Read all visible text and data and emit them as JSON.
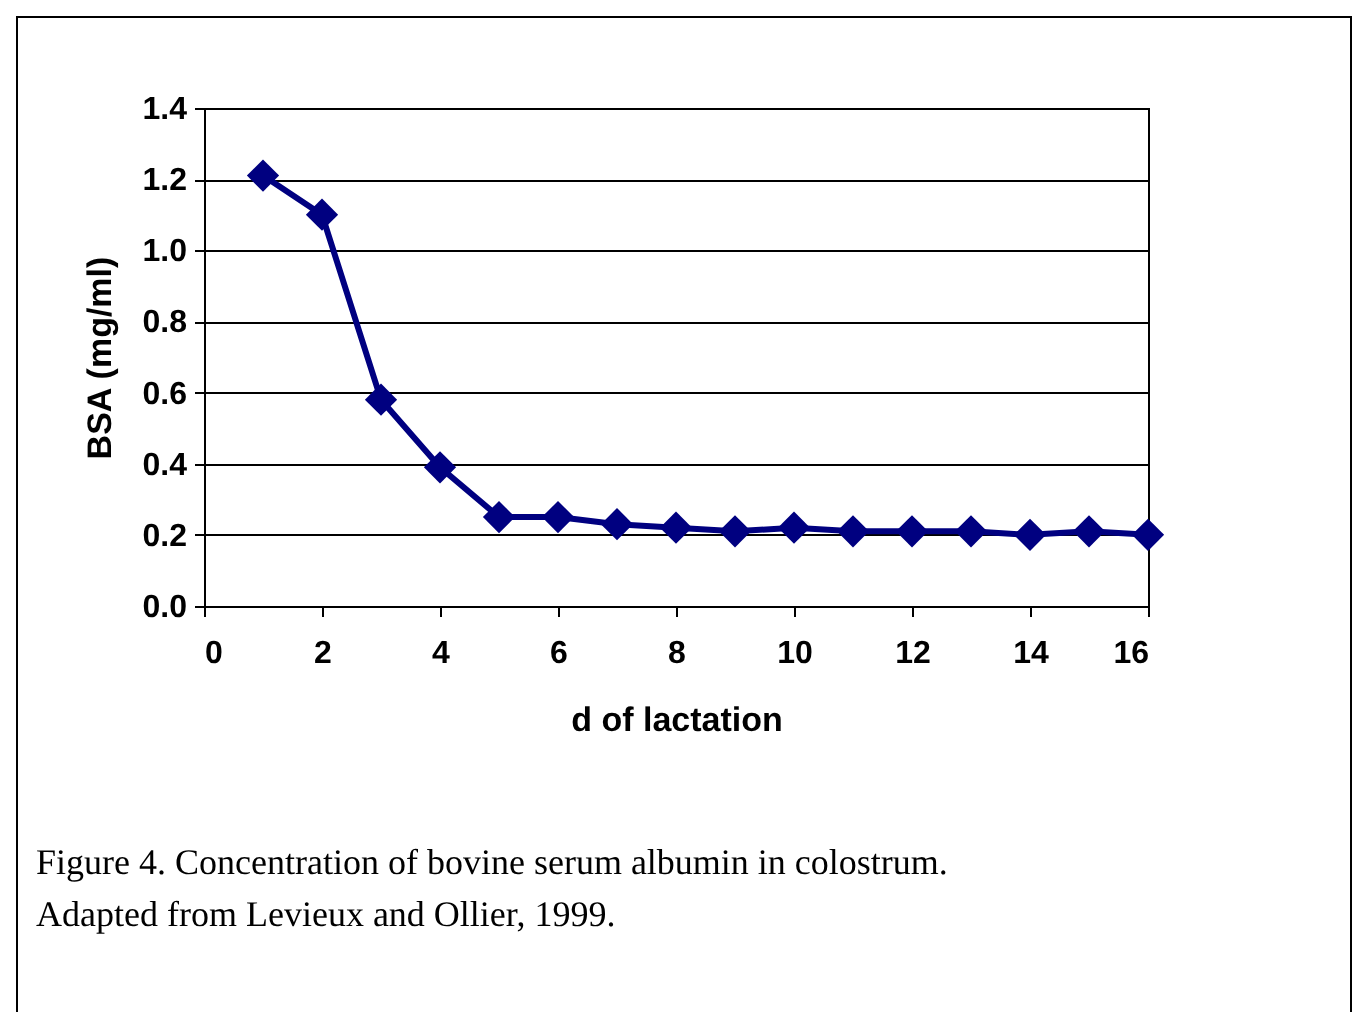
{
  "chart_data": {
    "type": "line",
    "xlabel": "d of lactation",
    "ylabel": "BSA (mg/ml)",
    "x": [
      1,
      2,
      3,
      4,
      5,
      6,
      7,
      8,
      9,
      10,
      11,
      12,
      13,
      14,
      15,
      16
    ],
    "series": [
      {
        "color": "#000080",
        "values": [
          1.21,
          1.1,
          0.58,
          0.39,
          0.25,
          0.25,
          0.23,
          0.22,
          0.21,
          0.22,
          0.21,
          0.21,
          0.21,
          0.2,
          0.21,
          0.2
        ]
      }
    ],
    "xlim": [
      0,
      16
    ],
    "xticks": [
      0,
      2,
      4,
      6,
      8,
      10,
      12,
      14,
      16
    ],
    "ylim": [
      0,
      1.4
    ],
    "yticks": [
      {
        "value": 0,
        "label": "0.0"
      },
      {
        "value": 0.2,
        "label": "0.2"
      },
      {
        "value": 0.4,
        "label": "0.4"
      },
      {
        "value": 0.6,
        "label": "0.6"
      },
      {
        "value": 0.8,
        "label": "0.8"
      },
      {
        "value": 1,
        "label": "1.0"
      },
      {
        "value": 1.2,
        "label": "1.2"
      },
      {
        "value": 1.4,
        "label": "1.4"
      }
    ],
    "grid": "y",
    "marker": "diamond",
    "line_style": "solid",
    "legend": false,
    "annotations": [
      "Figure 4.  Concentration of bovine serum albumin in colostrum.  Adapted from Levieux and Ollier, 1999."
    ]
  }
}
